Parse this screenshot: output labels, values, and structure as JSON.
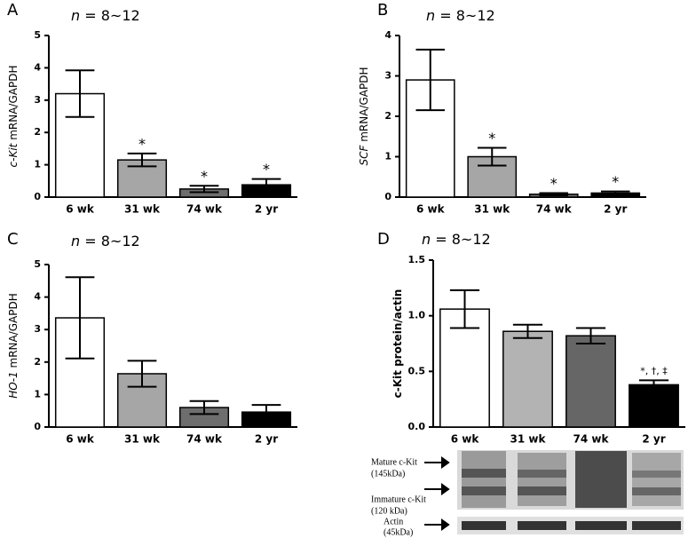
{
  "chart_data": [
    {
      "type": "bar",
      "panel": "A",
      "n_label": {
        "n": "n",
        "text": "= 8~12"
      },
      "y_label": {
        "gene": "c-Kit",
        "text": "mRNA/GAPDH"
      },
      "categories": [
        "6 wk",
        "31 wk",
        "74 wk",
        "2 yr"
      ],
      "values": [
        3.2,
        1.15,
        0.25,
        0.38
      ],
      "errors": [
        0.72,
        0.2,
        0.1,
        0.18
      ],
      "colors": [
        "#ffffff",
        "#a6a6a6",
        "#6e6e6e",
        "#000000"
      ],
      "annotations": [
        null,
        "*",
        "*",
        "*"
      ],
      "ylim": [
        0,
        5
      ],
      "yticks": [
        0,
        1,
        2,
        3,
        4,
        5
      ]
    },
    {
      "type": "bar",
      "panel": "B",
      "n_label": {
        "n": "n",
        "text": "= 8~12"
      },
      "y_label": {
        "gene": "SCF",
        "text": "mRNA/GAPDH"
      },
      "categories": [
        "6 wk",
        "31 wk",
        "74 wk",
        "2 yr"
      ],
      "values": [
        2.9,
        1.0,
        0.07,
        0.1
      ],
      "errors": [
        0.75,
        0.22,
        0.03,
        0.04
      ],
      "colors": [
        "#ffffff",
        "#a6a6a6",
        "#6e6e6e",
        "#000000"
      ],
      "annotations": [
        null,
        "*",
        "*",
        "*"
      ],
      "ylim": [
        0,
        4
      ],
      "yticks": [
        0,
        1,
        2,
        3,
        4
      ]
    },
    {
      "type": "bar",
      "panel": "C",
      "n_label": {
        "n": "n",
        "text": "= 8~12"
      },
      "y_label": {
        "gene": "HO-1",
        "text": "mRNA/GAPDH"
      },
      "categories": [
        "6 wk",
        "31 wk",
        "74 wk",
        "2 yr"
      ],
      "values": [
        3.36,
        1.64,
        0.6,
        0.46
      ],
      "errors": [
        1.25,
        0.4,
        0.2,
        0.22
      ],
      "colors": [
        "#ffffff",
        "#a6a6a6",
        "#6e6e6e",
        "#000000"
      ],
      "ylim": [
        0,
        5
      ],
      "yticks": [
        0,
        1,
        2,
        3,
        4,
        5
      ]
    },
    {
      "type": "bar",
      "panel": "D",
      "n_label": {
        "n": "n",
        "text": "= 8~12"
      },
      "y_label": {
        "text": "c-Kit protein/actin"
      },
      "categories": [
        "6 wk",
        "31 wk",
        "74 wk",
        "2 yr"
      ],
      "values": [
        1.06,
        0.86,
        0.82,
        0.38
      ],
      "errors": [
        0.17,
        0.06,
        0.07,
        0.04
      ],
      "colors": [
        "#ffffff",
        "#b3b3b3",
        "#666666",
        "#000000"
      ],
      "annotations": [
        null,
        null,
        null,
        "*, †, ‡"
      ],
      "ylim": [
        0,
        1.5
      ],
      "yticks": [
        {
          "value": 0,
          "label": "0.0"
        },
        0.5,
        {
          "value": 1,
          "label": "1.0"
        },
        {
          "value": 1.5,
          "label": "1.5"
        }
      ],
      "blot_labels": [
        "Mature c-Kit",
        "(145kDa)",
        "Immature c-Kit",
        "(120 kDa)",
        "Actin",
        "(45kDa)"
      ]
    }
  ]
}
